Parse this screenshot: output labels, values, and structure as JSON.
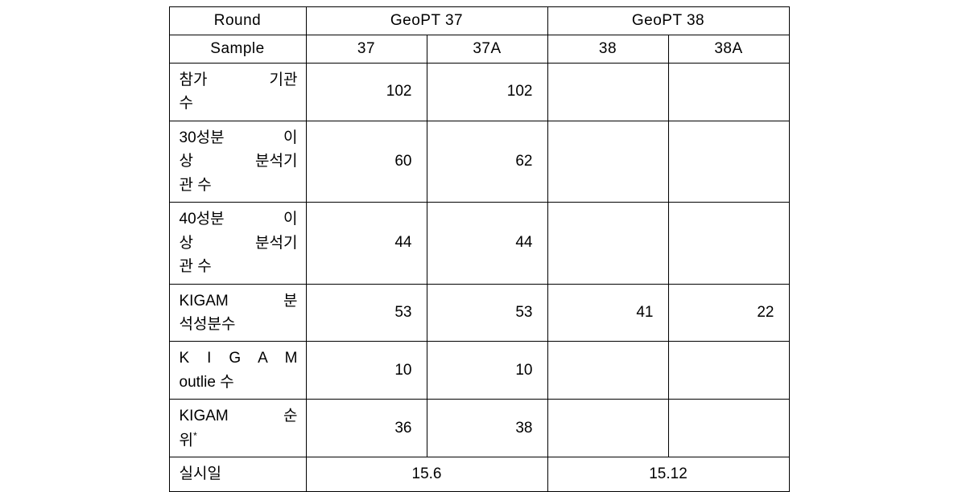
{
  "table": {
    "headers": {
      "round_label": "Round",
      "sample_label": "Sample",
      "group1": "GeoPT 37",
      "group2": "GeoPT 38",
      "s37": "37",
      "s37a": "37A",
      "s38": "38",
      "s38a": "38A"
    },
    "rows": {
      "r1": {
        "label_html": "참가&nbsp;&nbsp;기관<br><span class=\"last-line\">수</span>",
        "c37": "102",
        "c37a": "102",
        "c38": "",
        "c38a": ""
      },
      "r2": {
        "label_html": "30성분&nbsp;&nbsp;이<br>상&nbsp;&nbsp;분석기<br><span class=\"last-line\">관 수</span>",
        "c37": "60",
        "c37a": "62",
        "c38": "",
        "c38a": ""
      },
      "r3": {
        "label_html": "40성분&nbsp;&nbsp;이<br>상&nbsp;&nbsp;분석기<br><span class=\"last-line\">관 수</span>",
        "c37": "44",
        "c37a": "44",
        "c38": "",
        "c38a": ""
      },
      "r4": {
        "label_html": "KIGAM 분<br><span class=\"last-line\">석성분수</span>",
        "c37": "53",
        "c37a": "53",
        "c38": "41",
        "c38a": "22"
      },
      "r5": {
        "label_html": "K I G A M<br><span class=\"last-line\">outlie 수</span>",
        "c37": "10",
        "c37a": "10",
        "c38": "",
        "c38a": ""
      },
      "r6": {
        "label_html": "KIGAM 순<br><span class=\"last-line\">위<sup>*</sup></span>",
        "c37": "36",
        "c37a": "38",
        "c38": "",
        "c38a": ""
      },
      "r7": {
        "label": "실시일",
        "date1": "15.6",
        "date2": "15.12"
      }
    }
  }
}
